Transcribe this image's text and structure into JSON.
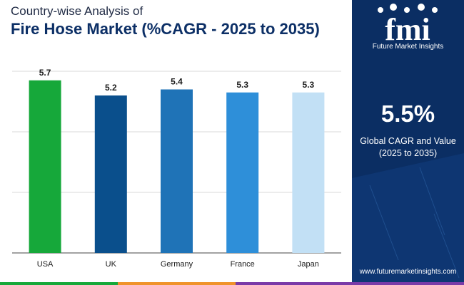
{
  "header": {
    "subtitle": "Country-wise Analysis of",
    "title": "Fire Hose Market (%CAGR - 2025 to 2035)"
  },
  "chart_data": {
    "type": "bar",
    "categories": [
      "USA",
      "UK",
      "Germany",
      "France",
      "Japan"
    ],
    "values": [
      5.7,
      5.2,
      5.4,
      5.3,
      5.3
    ],
    "value_labels": [
      "5.7",
      "5.2",
      "5.4",
      "5.3",
      "5.3"
    ],
    "colors": [
      "#16a83a",
      "#0a4f8c",
      "#1f73b7",
      "#2e8fd9",
      "#c2e0f5"
    ],
    "ylim": [
      0,
      6
    ],
    "grid": true,
    "title": "Fire Hose Market (%CAGR - 2025 to 2035)",
    "xlabel": "",
    "ylabel": ""
  },
  "sidebar": {
    "logo_mark": "fmi",
    "logo_name": "Future Market Insights",
    "global_value": "5.5%",
    "global_label_line1": "Global CAGR and Value",
    "global_label_line2": "(2025 to 2035)",
    "website": "www.futuremarketinsights.com"
  },
  "theme": {
    "sidebar_bg": "#0b2e63",
    "strip_colors": [
      "#16a83a",
      "#f0932b",
      "#7a3aa8"
    ]
  }
}
